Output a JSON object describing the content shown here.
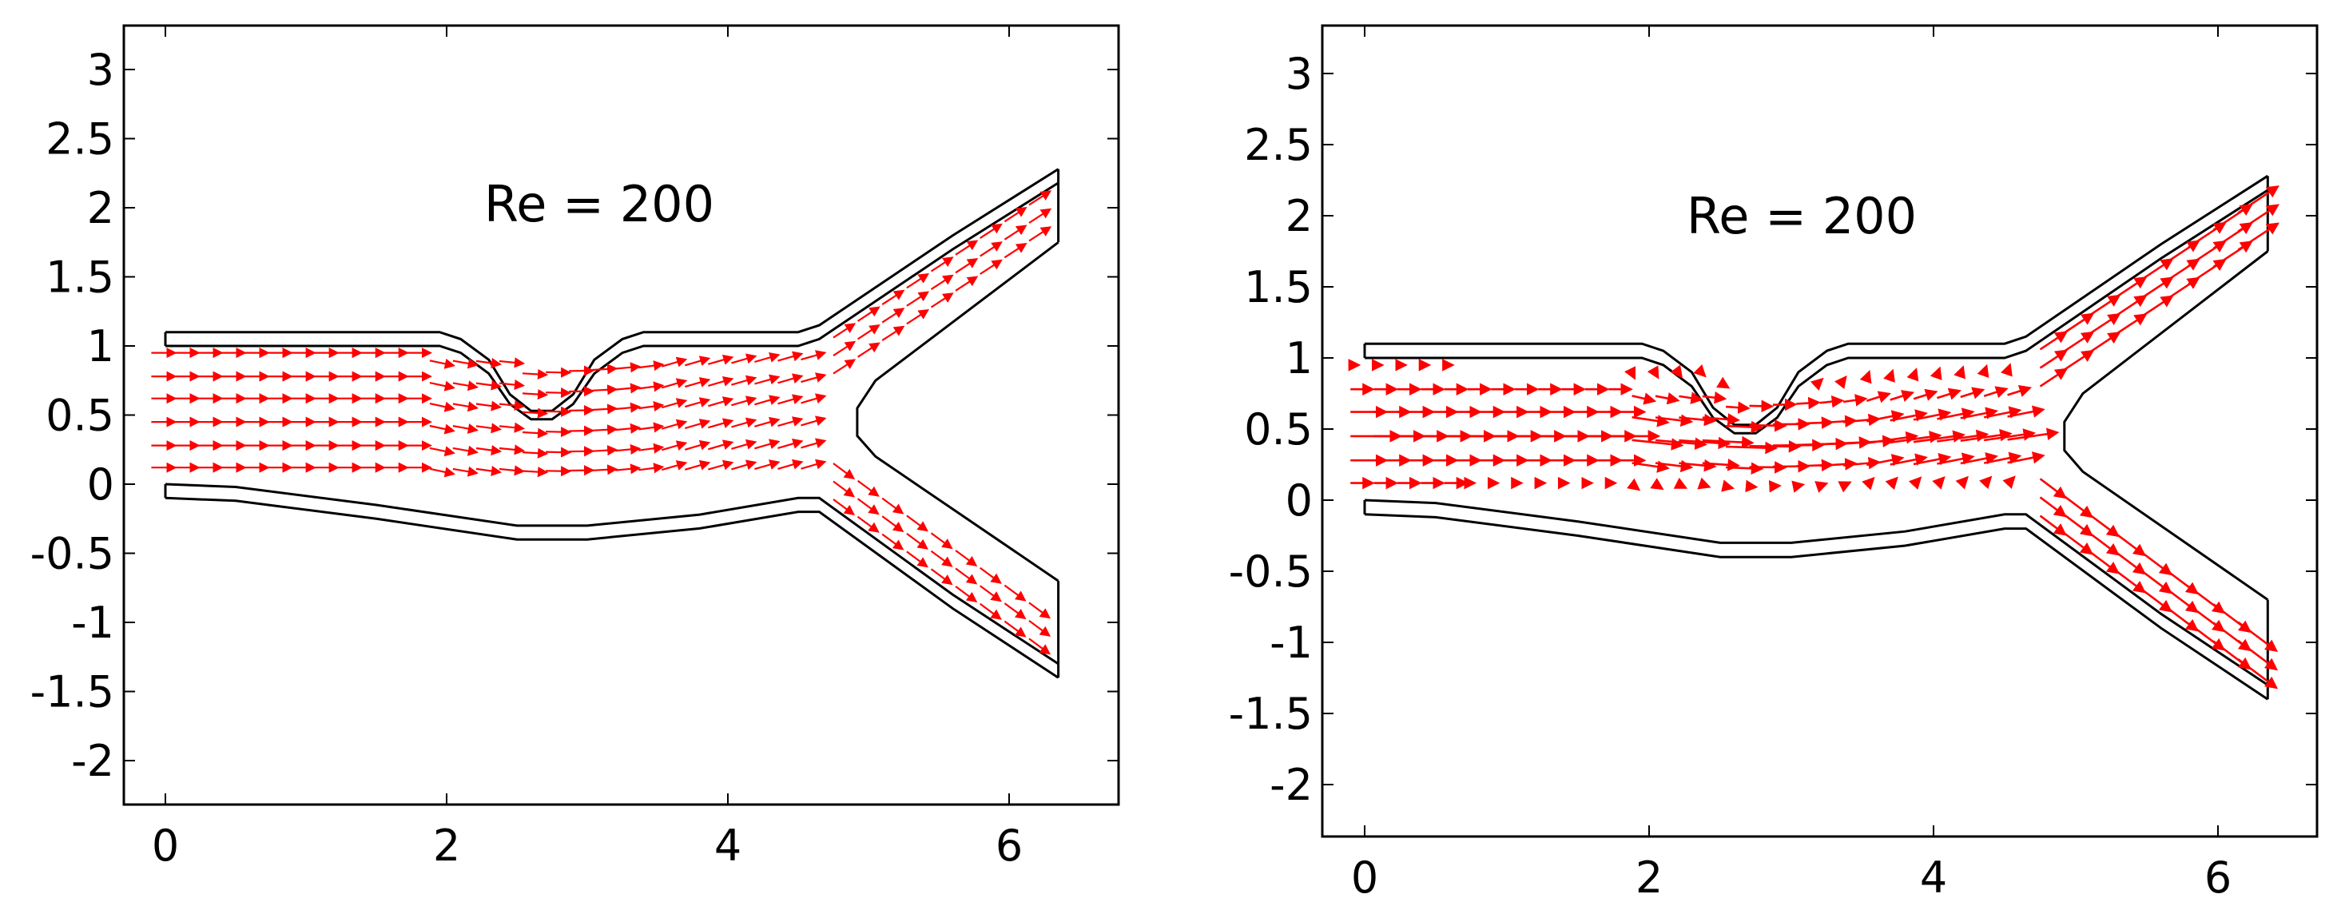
{
  "chart_data": [
    {
      "type": "quiver",
      "annotation": "Re = 200",
      "xlabel": "",
      "ylabel": "",
      "xlim": [
        -0.3,
        6.8
      ],
      "ylim": [
        -2.3,
        3.3
      ],
      "xticks": [
        "0",
        "2",
        "4",
        "6"
      ],
      "xtick_values": [
        0,
        2,
        4,
        6
      ],
      "yticks": [
        "3",
        "2.5",
        "2",
        "1.5",
        "1",
        "0.5",
        "0",
        "-0.5",
        "-1",
        "-1.5",
        "-2"
      ],
      "ytick_values": [
        3,
        2.5,
        2,
        1.5,
        1,
        0.5,
        0,
        -0.5,
        -1,
        -1.5,
        -2
      ],
      "arrow_color": "#ff0000",
      "wall_color": "#000000",
      "vector_field": "full"
    },
    {
      "type": "quiver",
      "annotation": "Re = 200",
      "xlabel": "",
      "ylabel": "",
      "xlim": [
        -0.3,
        6.8
      ],
      "ylim": [
        -2.3,
        3.3
      ],
      "xticks": [
        "0",
        "2",
        "4",
        "6"
      ],
      "xtick_values": [
        0,
        2,
        4,
        6
      ],
      "yticks": [
        "3",
        "2.5",
        "2",
        "1.5",
        "1",
        "0.5",
        "0",
        "-0.5",
        "-1",
        "-1.5",
        "-2"
      ],
      "ytick_values": [
        3,
        2.5,
        2,
        1.5,
        1,
        0.5,
        0,
        -0.5,
        -1,
        -1.5,
        -2
      ],
      "arrow_color": "#ff0000",
      "wall_color": "#000000",
      "vector_field": "core"
    }
  ]
}
